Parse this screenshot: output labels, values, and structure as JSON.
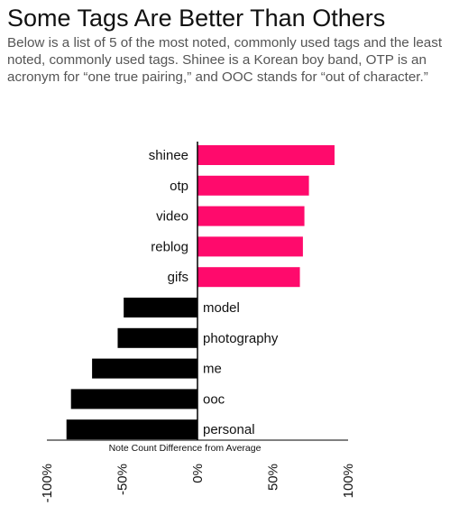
{
  "header": {
    "title": "Some Tags Are Better Than Others",
    "subtitle": "Below is a list of 5 of the most noted, commonly used tags and the least noted, commonly used tags. Shinee is a Korean boy band, OTP is an acronym for “one true pairing,” and OOC stands for “out of character.”"
  },
  "chart_data": {
    "type": "bar",
    "orientation": "horizontal",
    "title": "Some Tags Are Better Than Others",
    "xlabel": "Note Count Difference from Average",
    "ylabel": "",
    "categories": [
      "shinee",
      "otp",
      "video",
      "reblog",
      "gifs",
      "model",
      "photography",
      "me",
      "ooc",
      "personal"
    ],
    "values": [
      91,
      74,
      71,
      70,
      68,
      -49,
      -53,
      -70,
      -84,
      -87
    ],
    "xlim": [
      -100,
      100
    ],
    "xticks": [
      "-100%",
      "-50%",
      "0%",
      "50%",
      "100%"
    ],
    "grid": false,
    "colors": {
      "positive": "#ff0a6c",
      "negative": "#000000"
    }
  }
}
